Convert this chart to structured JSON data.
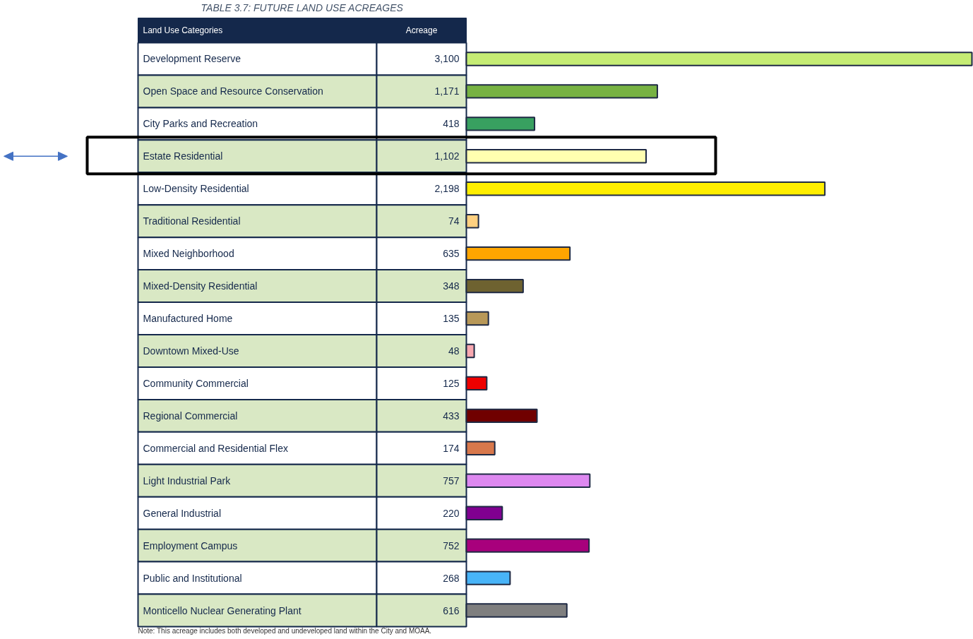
{
  "chart_data": {
    "type": "bar",
    "orientation": "horizontal",
    "title": "TABLE 3.7: FUTURE LAND USE ACREAGES",
    "ylabel": "Land Use Categories",
    "xlabel": "Acreage",
    "categories": [
      "Development Reserve",
      "Open Space and Resource Conservation",
      "City Parks and Recreation",
      "Estate Residential",
      "Low-Density Residential",
      "Traditional Residential",
      "Mixed Neighborhood",
      "Mixed-Density Residential",
      "Manufactured Home",
      "Downtown Mixed-Use",
      "Community Commercial",
      "Regional Commercial",
      "Commercial and Residential Flex",
      "Light Industrial Park",
      "General Industrial",
      "Employment Campus",
      "Public and Institutional",
      "Monticello Nuclear Generating Plant"
    ],
    "values": [
      3100,
      1171,
      418,
      1102,
      2198,
      74,
      635,
      348,
      135,
      48,
      125,
      433,
      174,
      757,
      220,
      752,
      268,
      616
    ],
    "value_labels": [
      "3,100",
      "1,171",
      "418",
      "1,102",
      "2,198",
      "74",
      "635",
      "348",
      "135",
      "48",
      "125",
      "433",
      "174",
      "757",
      "220",
      "752",
      "268",
      "616"
    ],
    "colors": [
      "#c5ec74",
      "#77b243",
      "#38a060",
      "#ffffb0",
      "#ffee00",
      "#ffd080",
      "#ffa500",
      "#6e6230",
      "#b89858",
      "#f8a8b0",
      "#ee0000",
      "#700000",
      "#d8784c",
      "#dd88f0",
      "#800090",
      "#a8007c",
      "#48b4f8",
      "#7f7f7f"
    ],
    "annotations": [
      "Note: This acreage includes both developed and undeveloped land within the City and MOAA."
    ]
  }
}
